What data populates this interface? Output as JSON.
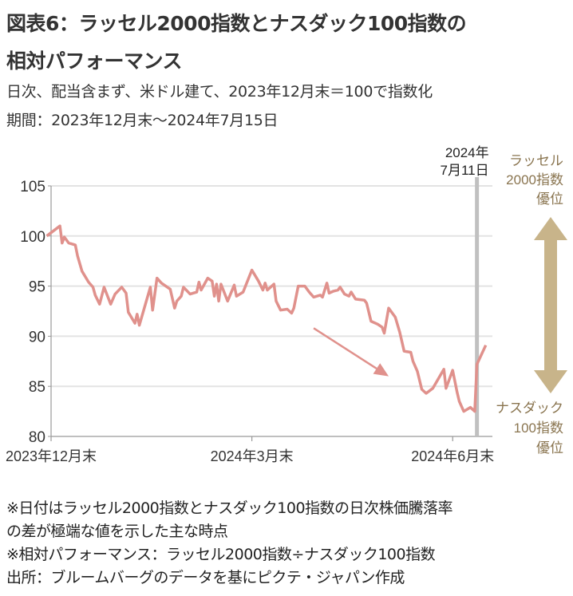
{
  "header": {
    "title_line1": "図表6：ラッセル2000指数とナスダック100指数の",
    "title_line2": "相対パフォーマンス",
    "subtitle_line1": "日次、配当含まず、米ドル建て、2023年12月末＝100で指数化",
    "subtitle_line2": "期間：2023年12月末～2024年7月15日"
  },
  "notes": [
    "※日付はラッセル2000指数とナスダック100指数の日次株価騰落率",
    "の差が極端な値を示した主な時点",
    "※相対パフォーマンス：ラッセル2000指数÷ナスダック100指数",
    "出所：ブルームバーグのデータを基にピクテ・ジャパン作成"
  ],
  "chart_data": {
    "type": "line",
    "title": "",
    "xlabel": "",
    "ylabel": "",
    "ylim": [
      80,
      105
    ],
    "yticks": [
      "105",
      "100",
      "95",
      "90",
      "85",
      "80"
    ],
    "xlim": [
      "2023-12-31",
      "2024-07-18"
    ],
    "xticks": [
      {
        "date": "2023-12-31",
        "label": "2023年12月末"
      },
      {
        "date": "2024-03-31",
        "label": "2024年3月末"
      },
      {
        "date": "2024-06-30",
        "label": "2024年6月末"
      }
    ],
    "grid": "horizontal",
    "line_color": "#e0918c",
    "series": [
      {
        "points": [
          [
            "2023-12-29",
            100.0
          ],
          [
            "2024-01-04",
            101.0
          ],
          [
            "2024-01-05",
            99.3
          ],
          [
            "2024-01-06",
            99.9
          ],
          [
            "2024-01-08",
            99.3
          ],
          [
            "2024-01-11",
            99.1
          ],
          [
            "2024-01-12",
            98.0
          ],
          [
            "2024-01-14",
            96.5
          ],
          [
            "2024-01-17",
            95.4
          ],
          [
            "2024-01-19",
            94.9
          ],
          [
            "2024-01-20",
            94.1
          ],
          [
            "2024-01-22",
            93.2
          ],
          [
            "2024-01-24",
            94.9
          ],
          [
            "2024-01-27",
            93.2
          ],
          [
            "2024-01-29",
            94.2
          ],
          [
            "2024-02-01",
            94.9
          ],
          [
            "2024-02-03",
            94.3
          ],
          [
            "2024-02-04",
            92.4
          ],
          [
            "2024-02-07",
            91.3
          ],
          [
            "2024-02-08",
            92.2
          ],
          [
            "2024-02-09",
            91.1
          ],
          [
            "2024-02-14",
            94.9
          ],
          [
            "2024-02-15",
            92.6
          ],
          [
            "2024-02-17",
            95.8
          ],
          [
            "2024-02-19",
            95.3
          ],
          [
            "2024-02-23",
            94.7
          ],
          [
            "2024-02-25",
            92.8
          ],
          [
            "2024-02-26",
            93.5
          ],
          [
            "2024-02-28",
            94.0
          ],
          [
            "2024-02-29",
            94.9
          ],
          [
            "2024-03-03",
            94.2
          ],
          [
            "2024-03-06",
            94.4
          ],
          [
            "2024-03-07",
            95.4
          ],
          [
            "2024-03-08",
            94.6
          ],
          [
            "2024-03-11",
            95.8
          ],
          [
            "2024-03-13",
            95.5
          ],
          [
            "2024-03-14",
            94.0
          ],
          [
            "2024-03-15",
            95.2
          ],
          [
            "2024-03-16",
            93.5
          ],
          [
            "2024-03-17",
            95.2
          ],
          [
            "2024-03-20",
            93.5
          ],
          [
            "2024-03-23",
            95.1
          ],
          [
            "2024-03-24",
            94.0
          ],
          [
            "2024-03-27",
            94.4
          ],
          [
            "2024-03-31",
            96.6
          ],
          [
            "2024-04-03",
            95.5
          ],
          [
            "2024-04-05",
            94.6
          ],
          [
            "2024-04-06",
            95.3
          ],
          [
            "2024-04-07",
            94.6
          ],
          [
            "2024-04-10",
            95.2
          ],
          [
            "2024-04-11",
            93.5
          ],
          [
            "2024-04-13",
            92.6
          ],
          [
            "2024-04-16",
            92.7
          ],
          [
            "2024-04-18",
            92.3
          ],
          [
            "2024-04-19",
            92.8
          ],
          [
            "2024-04-21",
            95.0
          ],
          [
            "2024-04-24",
            95.0
          ],
          [
            "2024-04-26",
            94.4
          ],
          [
            "2024-04-28",
            93.9
          ],
          [
            "2024-05-01",
            94.1
          ],
          [
            "2024-05-02",
            93.9
          ],
          [
            "2024-05-04",
            95.3
          ],
          [
            "2024-05-05",
            94.3
          ],
          [
            "2024-05-07",
            94.5
          ],
          [
            "2024-05-09",
            94.6
          ],
          [
            "2024-05-10",
            94.9
          ],
          [
            "2024-05-12",
            94.2
          ],
          [
            "2024-05-14",
            94.0
          ],
          [
            "2024-05-15",
            94.4
          ],
          [
            "2024-05-17",
            93.7
          ],
          [
            "2024-05-21",
            93.6
          ],
          [
            "2024-05-22",
            93.3
          ],
          [
            "2024-05-24",
            91.5
          ],
          [
            "2024-05-27",
            91.2
          ],
          [
            "2024-05-29",
            90.9
          ],
          [
            "2024-05-30",
            90.3
          ],
          [
            "2024-06-01",
            92.8
          ],
          [
            "2024-06-04",
            91.9
          ],
          [
            "2024-06-06",
            90.4
          ],
          [
            "2024-06-08",
            88.5
          ],
          [
            "2024-06-11",
            88.4
          ],
          [
            "2024-06-12",
            87.5
          ],
          [
            "2024-06-14",
            86.5
          ],
          [
            "2024-06-16",
            84.7
          ],
          [
            "2024-06-18",
            84.3
          ],
          [
            "2024-06-21",
            84.8
          ],
          [
            "2024-06-26",
            86.7
          ],
          [
            "2024-06-27",
            84.8
          ],
          [
            "2024-06-30",
            86.6
          ],
          [
            "2024-07-02",
            84.4
          ],
          [
            "2024-07-03",
            83.5
          ],
          [
            "2024-07-05",
            82.5
          ],
          [
            "2024-07-08",
            82.9
          ],
          [
            "2024-07-10",
            82.5
          ],
          [
            "2024-07-11",
            87.2
          ],
          [
            "2024-07-15",
            89.1
          ]
        ]
      }
    ],
    "marker": {
      "date": "2024-07-11",
      "label_line1": "2024年",
      "label_line2": "7月11日",
      "color": "#c0c0c0"
    },
    "trend_arrow": {
      "from": [
        "2024-04-28",
        90.8
      ],
      "to": [
        "2024-06-01",
        86.0
      ]
    },
    "side_labels": {
      "top": [
        "ラッセル",
        "2000指数",
        "優位"
      ],
      "bottom": [
        "ナスダック",
        "100指数",
        "優位"
      ],
      "arrow_color": "#c8b48a"
    }
  }
}
